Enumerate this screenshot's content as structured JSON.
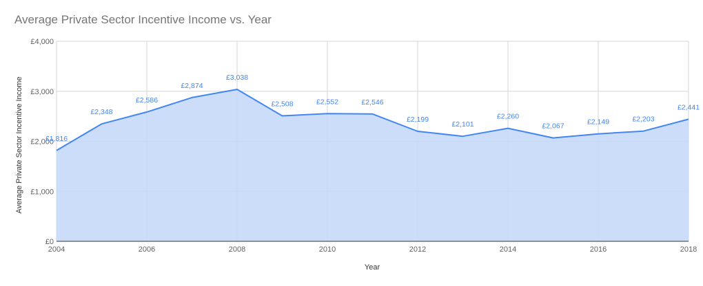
{
  "chart_data": {
    "type": "area",
    "title": "Average Private Sector Incentive Income vs. Year",
    "xlabel": "Year",
    "ylabel": "Average Private Sector Incentive Income",
    "x": [
      2004,
      2005,
      2006,
      2007,
      2008,
      2009,
      2010,
      2011,
      2012,
      2013,
      2014,
      2015,
      2016,
      2017,
      2018
    ],
    "series": [
      {
        "values": [
          1816,
          2348,
          2586,
          2874,
          3038,
          2508,
          2552,
          2546,
          2199,
          2101,
          2260,
          2067,
          2149,
          2203,
          2441
        ],
        "labels": [
          "£1,816",
          "£2,348",
          "£2,586",
          "£2,874",
          "£3,038",
          "£2,508",
          "£2,552",
          "£2,546",
          "£2,199",
          "£2,101",
          "£2,260",
          "£2,067",
          "£2,149",
          "£2,203",
          "£2,441"
        ]
      }
    ],
    "xlim": [
      2004,
      2018
    ],
    "ylim": [
      0,
      4000
    ],
    "x_ticks": [
      2004,
      2006,
      2008,
      2010,
      2012,
      2014,
      2016,
      2018
    ],
    "x_tick_labels": [
      "2004",
      "2006",
      "2008",
      "2010",
      "2012",
      "2014",
      "2016",
      "2018"
    ],
    "y_ticks": [
      0,
      1000,
      2000,
      3000,
      4000
    ],
    "y_tick_labels": [
      "£0",
      "£1,000",
      "£2,000",
      "£3,000",
      "£4,000"
    ],
    "grid": true,
    "colors": {
      "line": "#4285f4",
      "fill": "#c6d9f8",
      "grid": "#d6d6d6"
    }
  }
}
